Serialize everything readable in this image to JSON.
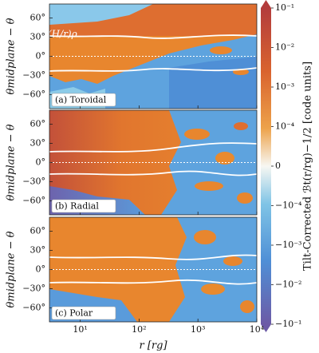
{
  "chart_data": {
    "type": "heatmap",
    "panels": [
      {
        "label": "(a) Toroidal"
      },
      {
        "label": "(b) Radial"
      },
      {
        "label": "(c) Polar"
      }
    ],
    "annotation": "(H/r)ρ",
    "xlabel": "r [rg]",
    "ylabel": "θmidplane − θ",
    "xscale": "log",
    "xlim": [
      3,
      10000
    ],
    "xticks": [
      {
        "value": 10,
        "label": "10¹"
      },
      {
        "value": 100,
        "label": "10²"
      },
      {
        "value": 1000,
        "label": "10³"
      },
      {
        "value": 10000,
        "label": "10⁴"
      }
    ],
    "ylim": [
      -82,
      82
    ],
    "yticks": [
      {
        "value": -60,
        "label": "−60°"
      },
      {
        "value": -30,
        "label": "−30°"
      },
      {
        "value": 0,
        "label": "0°"
      },
      {
        "value": 30,
        "label": "30°"
      },
      {
        "value": 60,
        "label": "60°"
      }
    ],
    "colorbar": {
      "label": "Tilt-Corrected ℬt(r/rg)−1/2 [code units]",
      "scale": "symlog",
      "lim": [
        -0.1,
        0.1
      ],
      "ticks": [
        {
          "value": 0.1,
          "label": "10⁻¹"
        },
        {
          "value": 0.01,
          "label": "10⁻²"
        },
        {
          "value": 0.001,
          "label": "10⁻³"
        },
        {
          "value": 0.0001,
          "label": "10⁻⁴"
        },
        0,
        {
          "value": -0.0001,
          "label": "−10⁻⁴"
        },
        {
          "value": -0.001,
          "label": "−10⁻³"
        },
        {
          "value": -0.01,
          "label": "−10⁻²"
        },
        {
          "value": -0.1,
          "label": "−10⁻¹"
        }
      ]
    }
  }
}
